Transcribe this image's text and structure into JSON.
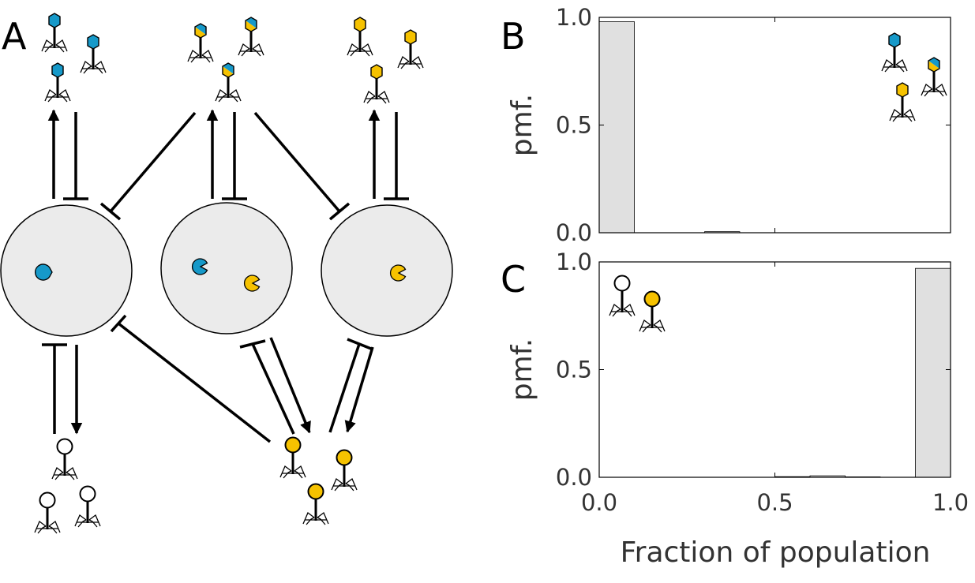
{
  "panels": {
    "a": "A",
    "b": "B",
    "c": "C"
  },
  "colors": {
    "blue": "#1699c9",
    "yellow": "#f6c200",
    "cell_fill": "#ebebeb",
    "bar_fill": "#e0e0e0",
    "white": "#ffffff"
  },
  "icons": {
    "cells": [
      "cell-with-blue-receptor",
      "cell-with-blue-and-yellow-receptors",
      "cell-with-yellow-receptor"
    ],
    "phages_top": [
      "blue-hex-phage",
      "half-blue-half-yellow-hex-phage",
      "yellow-hex-phage"
    ],
    "phages_bottom": [
      "white-round-phage",
      "yellow-round-phage"
    ]
  },
  "chart_data": [
    {
      "panel": "B",
      "type": "bar",
      "ylabel": "pmf.",
      "xlabel": "",
      "xlim": [
        0,
        1
      ],
      "ylim": [
        0,
        1
      ],
      "xticks": [
        "0.0",
        "0.5",
        "1.0"
      ],
      "yticks": [
        "0.0",
        "0.5",
        "1.0"
      ],
      "bin_edges": [
        0,
        0.1,
        0.2,
        0.3,
        0.4,
        0.5,
        0.6,
        0.7,
        0.8,
        0.9,
        1.0
      ],
      "values": [
        0.98,
        0.0,
        0.0,
        0.005,
        0.0,
        0.0,
        0.0,
        0.0,
        0.0,
        0.0
      ]
    },
    {
      "panel": "C",
      "type": "bar",
      "ylabel": "pmf.",
      "xlabel": "Fraction of population",
      "xlim": [
        0,
        1
      ],
      "ylim": [
        0,
        1
      ],
      "xticks": [
        "0.0",
        "0.5",
        "1.0"
      ],
      "yticks": [
        "0.0",
        "0.5",
        "1.0"
      ],
      "bin_edges": [
        0,
        0.1,
        0.2,
        0.3,
        0.4,
        0.5,
        0.6,
        0.7,
        0.8,
        0.9,
        1.0
      ],
      "values": [
        0.0,
        0.0,
        0.0,
        0.0,
        0.0,
        0.003,
        0.007,
        0.002,
        0.0,
        0.97
      ]
    }
  ]
}
